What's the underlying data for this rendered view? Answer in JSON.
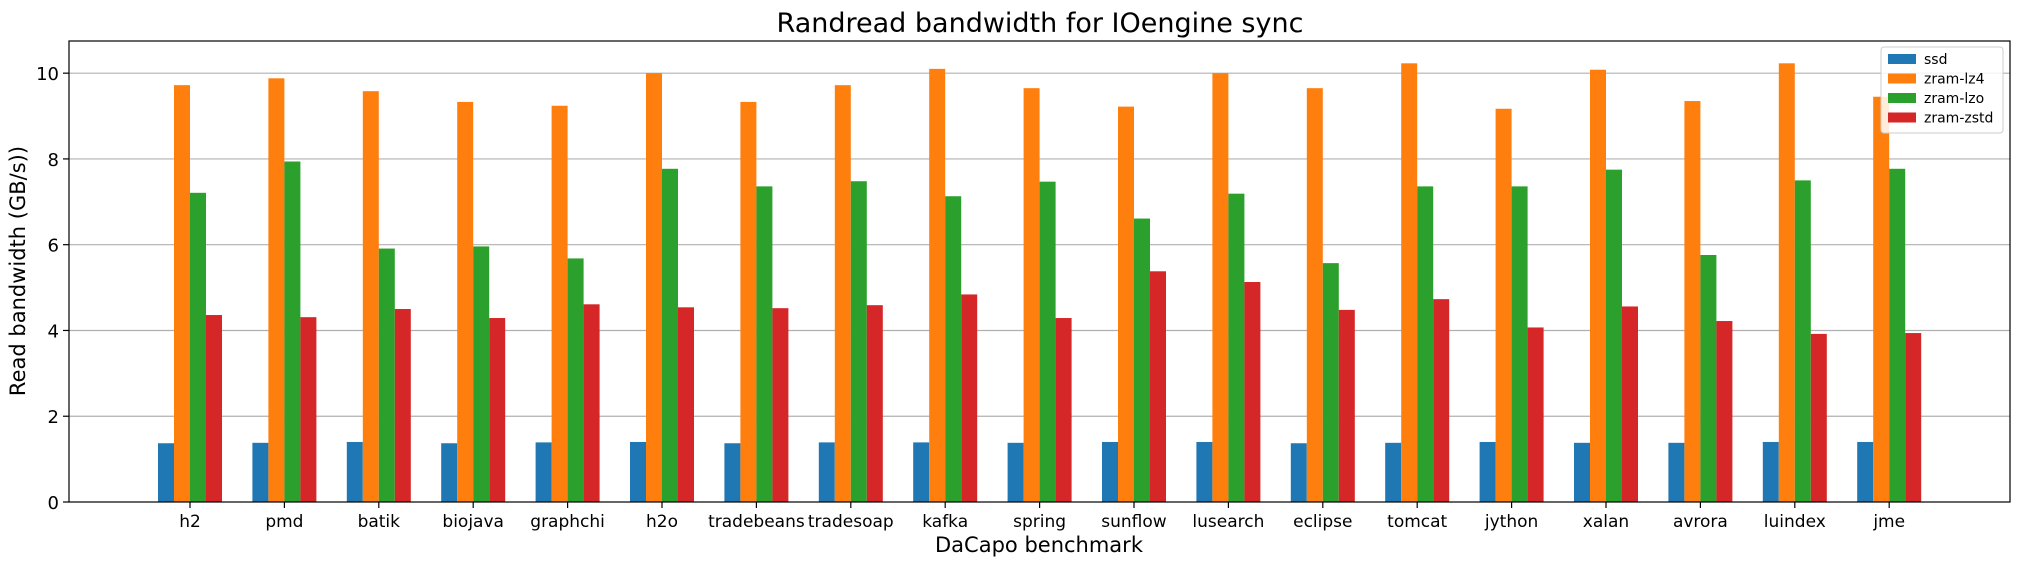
{
  "chart_data": {
    "type": "bar",
    "title": "Randread bandwidth for IOengine sync",
    "xlabel": "DaCapo benchmark",
    "ylabel": "Read bandwidth (GB/s))",
    "ylim": [
      0,
      10.75
    ],
    "yticks": [
      0,
      2,
      4,
      6,
      8,
      10
    ],
    "grid": "horizontal",
    "legend_position": "top-right",
    "categories": [
      "h2",
      "pmd",
      "batik",
      "biojava",
      "graphchi",
      "h2o",
      "tradebeans",
      "tradesoap",
      "kafka",
      "spring",
      "sunflow",
      "lusearch",
      "eclipse",
      "tomcat",
      "jython",
      "xalan",
      "avrora",
      "luindex",
      "jme"
    ],
    "series": [
      {
        "name": "ssd",
        "color": "#1f77b4",
        "values": [
          1.37,
          1.38,
          1.4,
          1.37,
          1.39,
          1.4,
          1.37,
          1.39,
          1.39,
          1.38,
          1.4,
          1.4,
          1.37,
          1.38,
          1.4,
          1.38,
          1.38,
          1.4,
          1.4
        ]
      },
      {
        "name": "zram-lz4",
        "color": "#ff7f0e",
        "values": [
          9.72,
          9.88,
          9.58,
          9.33,
          9.24,
          10.0,
          9.33,
          9.72,
          10.1,
          9.65,
          9.22,
          10.0,
          9.65,
          10.23,
          9.17,
          10.08,
          9.35,
          10.23,
          9.45
        ]
      },
      {
        "name": "zram-lzo",
        "color": "#2ca02c",
        "values": [
          7.21,
          7.94,
          5.91,
          5.96,
          5.68,
          7.77,
          7.36,
          7.48,
          7.13,
          7.47,
          6.61,
          7.19,
          5.57,
          7.36,
          7.36,
          7.75,
          5.76,
          7.5,
          7.77
        ]
      },
      {
        "name": "zram-zstd",
        "color": "#d62728",
        "values": [
          4.36,
          4.31,
          4.5,
          4.29,
          4.61,
          4.54,
          4.52,
          4.59,
          4.84,
          4.29,
          5.38,
          5.13,
          4.48,
          4.73,
          4.07,
          4.56,
          4.22,
          3.92,
          3.94
        ]
      }
    ]
  }
}
